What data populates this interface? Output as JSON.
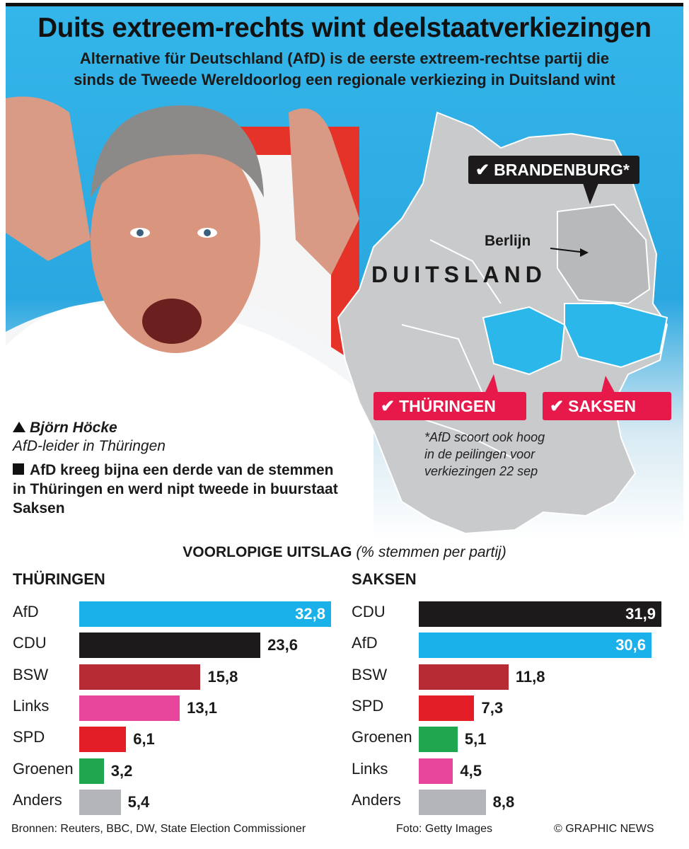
{
  "header": {
    "title": "Duits extreem-rechts wint deelstaatverkiezingen",
    "subtitle_line1": "Alternative für Deutschland (AfD) is de eerste extreem-rechtse partij die",
    "subtitle_line2": "sinds de Tweede Wereldoorlog een regionale verkiezing in Duitsland wint"
  },
  "map": {
    "country": "DUITSLAND",
    "capital": "Berlijn",
    "callouts": {
      "brandenburg": "BRANDENBURG*",
      "thueringen": "THÜRINGEN",
      "saksen": "SAKSEN"
    },
    "check_icon": "✔",
    "footnote": [
      "*AfD scoort ook hoog",
      "in de peilingen voor",
      "verkiezingen 22 sep"
    ]
  },
  "photo_caption": {
    "name": "Björn Höcke",
    "role": "AfD-leider in Thüringen",
    "note": "AfD kreeg bijna een derde van de stemmen in Thüringen en werd nipt tweede in buurstaat Saksen"
  },
  "results": {
    "heading": "VOORLOPIGE UITSLAG",
    "heading_unit": "(% stemmen per partij)"
  },
  "chart_data": [
    {
      "type": "bar",
      "orientation": "horizontal",
      "title": "THÜRINGEN",
      "categories": [
        "AfD",
        "CDU",
        "BSW",
        "Links",
        "SPD",
        "Groenen",
        "Anders"
      ],
      "values": [
        32.8,
        23.6,
        15.8,
        13.1,
        6.1,
        3.2,
        5.4
      ],
      "value_labels": [
        "32,8",
        "23,6",
        "15,8",
        "13,1",
        "6,1",
        "3,2",
        "5,4"
      ],
      "colors": [
        "#1ab0ea",
        "#1c1a1b",
        "#b72b34",
        "#e8459c",
        "#e31e26",
        "#1fa64f",
        "#b3b5b8"
      ],
      "xlim": [
        0,
        32.8
      ]
    },
    {
      "type": "bar",
      "orientation": "horizontal",
      "title": "SAKSEN",
      "categories": [
        "CDU",
        "AfD",
        "BSW",
        "SPD",
        "Groenen",
        "Links",
        "Anders"
      ],
      "values": [
        31.9,
        30.6,
        11.8,
        7.3,
        5.1,
        4.5,
        8.8
      ],
      "value_labels": [
        "31,9",
        "30,6",
        "11,8",
        "7,3",
        "5,1",
        "4,5",
        "8,8"
      ],
      "colors": [
        "#1c1a1b",
        "#1ab0ea",
        "#b72b34",
        "#e31e26",
        "#1fa64f",
        "#e8459c",
        "#b3b5b8"
      ],
      "xlim": [
        0,
        31.9
      ]
    }
  ],
  "footer": {
    "sources": "Bronnen: Reuters, BBC, DW, State Election Commissioner",
    "photo": "Foto: Getty Images",
    "credit": "© GRAPHIC NEWS"
  }
}
